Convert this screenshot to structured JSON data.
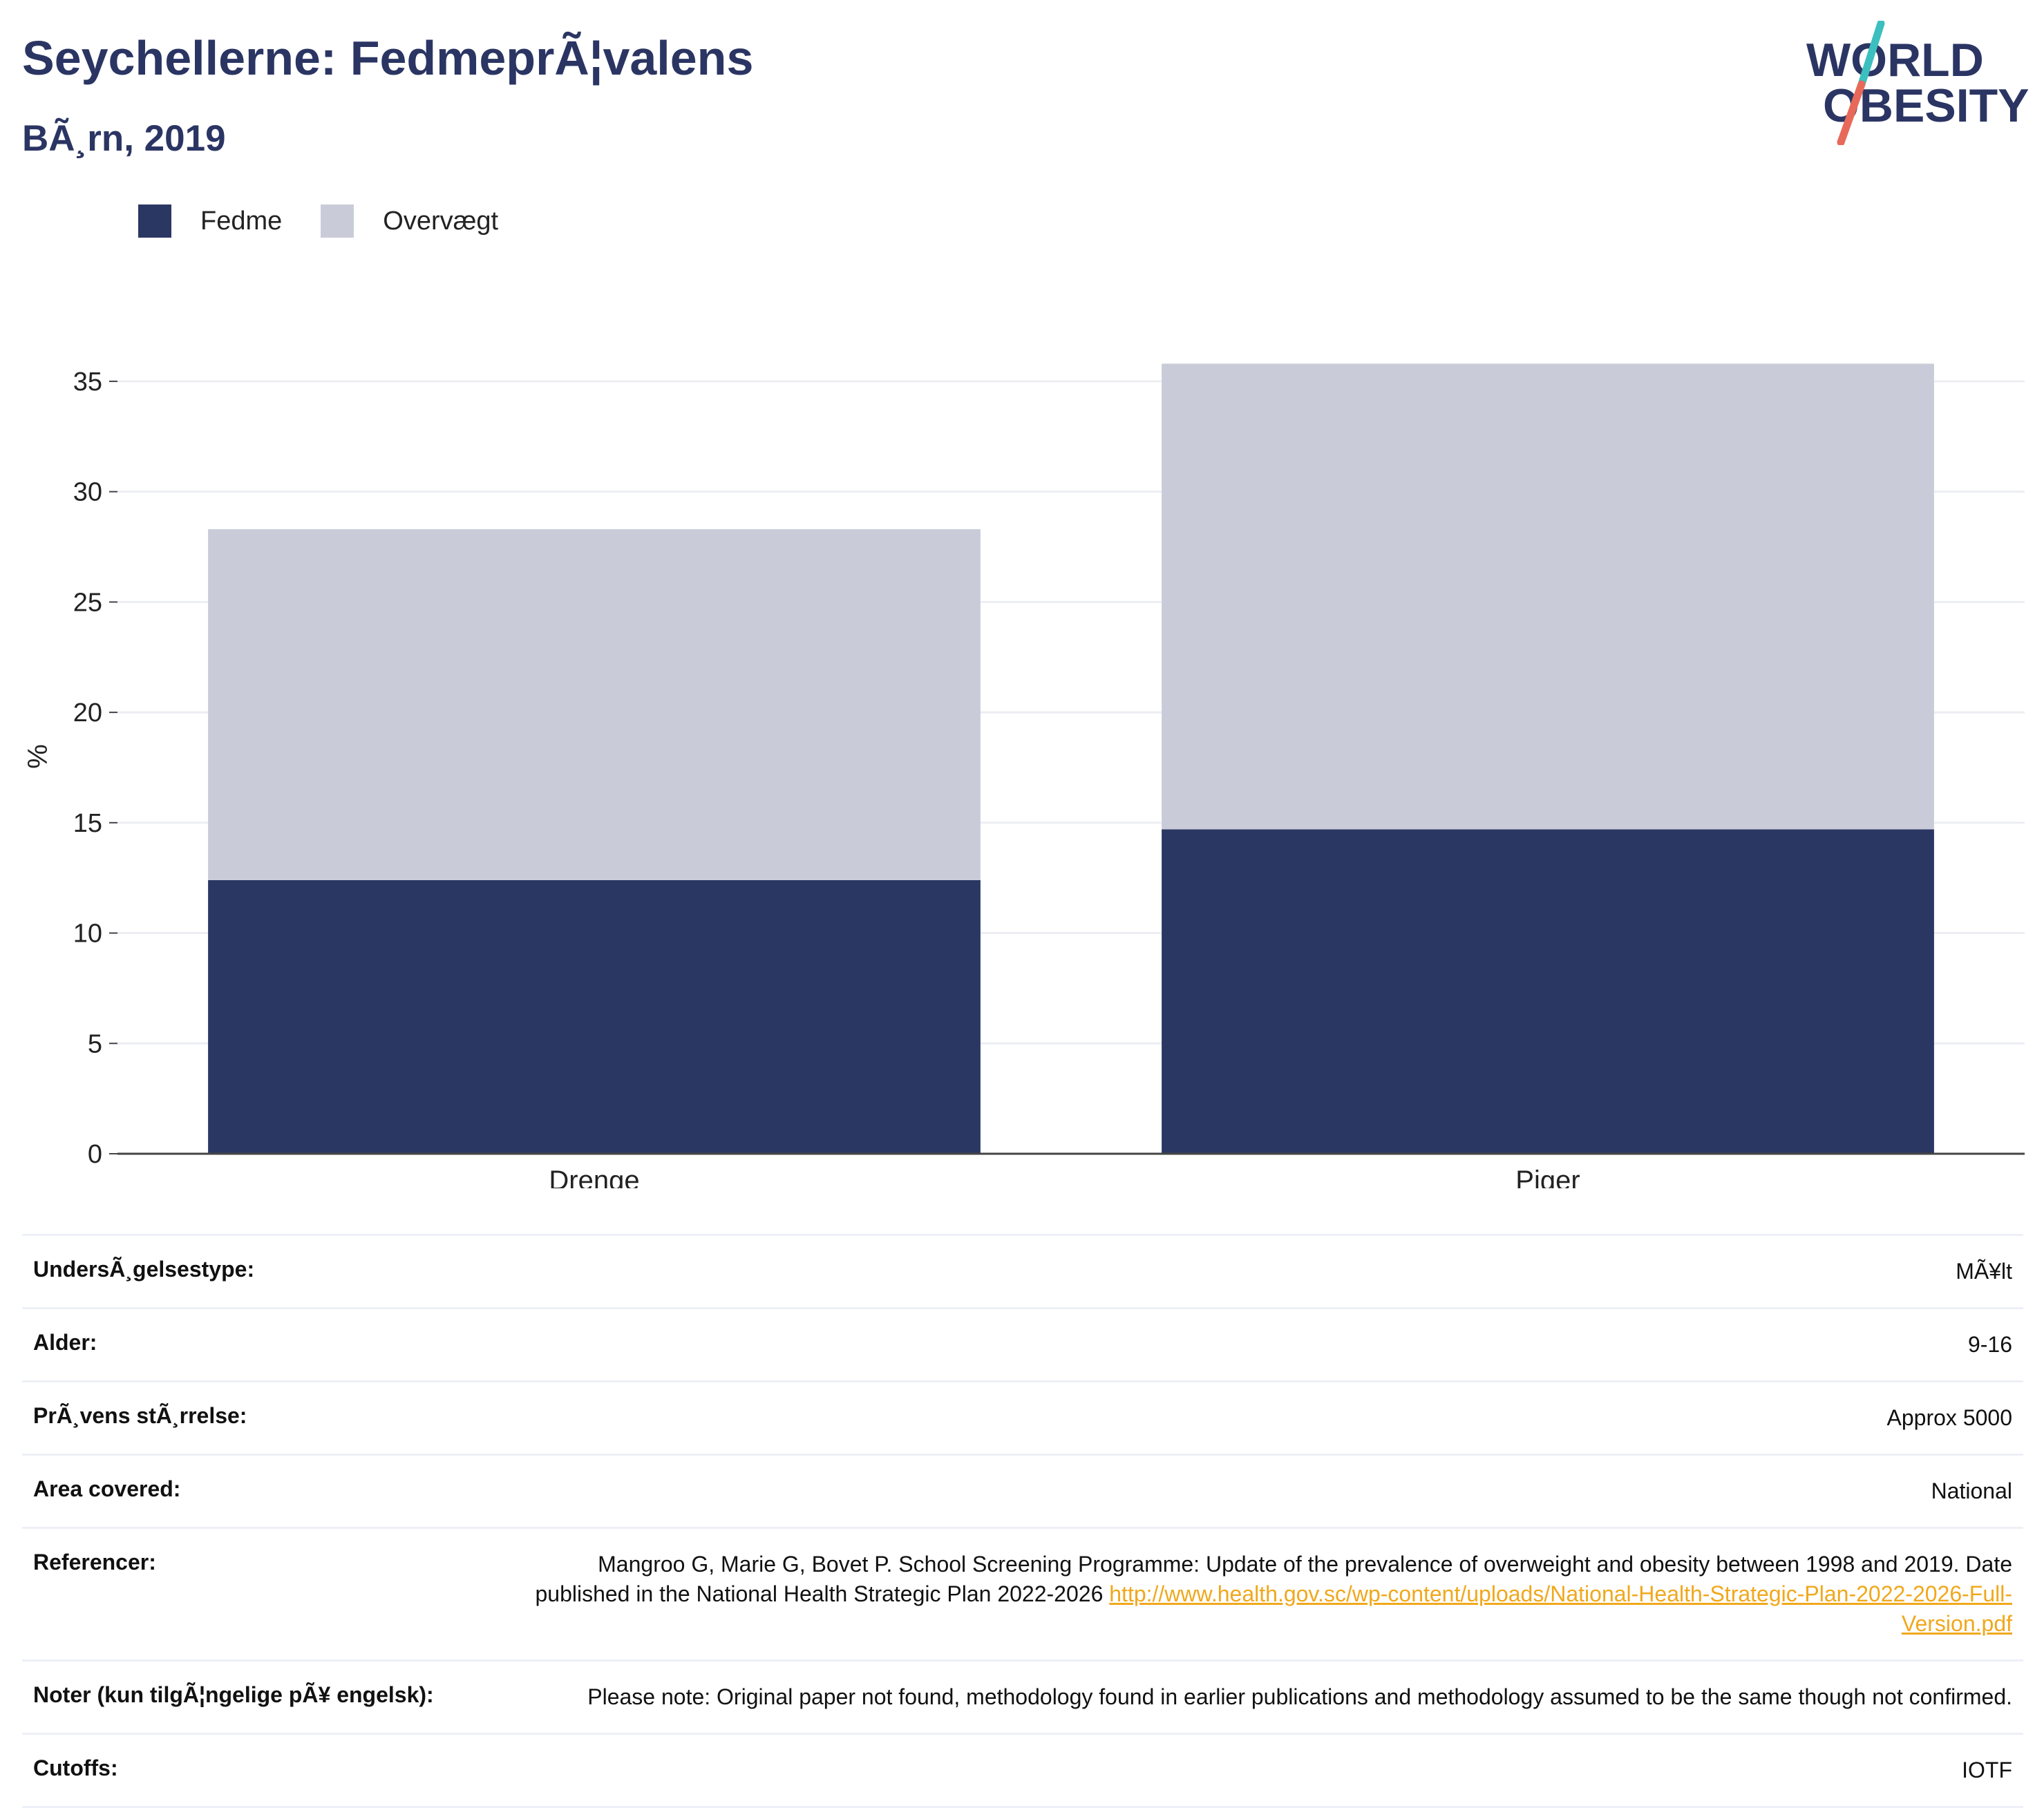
{
  "header": {
    "title": "Seychellerne: FedmeprÃ¦valens",
    "subtitle": "BÃ¸rn, 2019"
  },
  "logo": {
    "line1": "WORLD",
    "line2": "OBESITY",
    "colors": {
      "text": "#2b3563",
      "slash_top": "#3bbfbf",
      "slash_bottom": "#e8695a"
    }
  },
  "legend": [
    {
      "label": "Fedme",
      "color": "#2b3763"
    },
    {
      "label": "Overvægt",
      "color": "#c9ccd8"
    }
  ],
  "chart_data": {
    "type": "bar",
    "stacked": true,
    "categories": [
      "Drenge",
      "Piger"
    ],
    "series": [
      {
        "name": "Fedme",
        "values": [
          12.4,
          14.7
        ],
        "color": "#2b3763"
      },
      {
        "name": "Overvægt",
        "values": [
          15.9,
          21.1
        ],
        "color": "#c9ccd8"
      }
    ],
    "ylabel": "%",
    "ylim": [
      0,
      36
    ],
    "yticks": [
      0,
      5,
      10,
      15,
      20,
      25,
      30,
      35
    ],
    "grid": true,
    "legend_position": "top-left"
  },
  "details": [
    {
      "key": "UndersÃ¸gelsestype:",
      "value": "MÃ¥lt"
    },
    {
      "key": "Alder:",
      "value": "9-16"
    },
    {
      "key": "PrÃ¸vens stÃ¸rrelse:",
      "value": "Approx 5000"
    },
    {
      "key": "Area covered:",
      "value": "National"
    },
    {
      "key": "Referencer:",
      "value": "Mangroo G, Marie G, Bovet P. School Screening Programme: Update of the prevalence of overweight and obesity between 1998 and 2019. Date published in the National Health Strategic Plan 2022-2026 ",
      "link": "http://www.health.gov.sc/wp-content/uploads/National-Health-Strategic-Plan-2022-2026-Full-Version.pdf"
    },
    {
      "key": "Noter (kun tilgÃ¦ngelige pÃ¥ engelsk):",
      "value": "Please note: Original paper not found, methodology found in earlier publications and methodology assumed to be the same though not confirmed."
    },
    {
      "key": "Cutoffs:",
      "value": "IOTF"
    }
  ]
}
